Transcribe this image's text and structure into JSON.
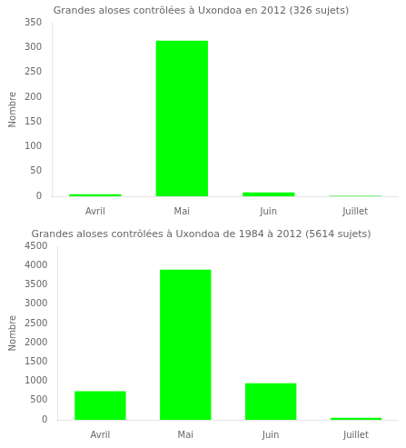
{
  "chart_data": [
    {
      "type": "bar",
      "title": "Grandes aloses contrôlées à Uxondoa en 2012 (326 sujets)",
      "categories": [
        "Avril",
        "Mai",
        "Juin",
        "Juillet"
      ],
      "values": [
        4,
        314,
        8,
        1
      ],
      "color": "#00FF00",
      "ylabel": "Nombre",
      "ylim": [
        0,
        350
      ],
      "yticks": [
        0,
        50,
        100,
        150,
        200,
        250,
        300,
        350
      ],
      "grid": false
    },
    {
      "type": "bar",
      "title": "Grandes aloses contrôlées à Uxondoa de 1984 à 2012 (5614 sujets)",
      "categories": [
        "Avril",
        "Mai",
        "Juin",
        "Juillet"
      ],
      "values": [
        740,
        3900,
        950,
        55
      ],
      "color": "#00FF00",
      "ylabel": "Nombre",
      "ylim": [
        0,
        4500
      ],
      "yticks": [
        0,
        500,
        1000,
        1500,
        2000,
        2500,
        3000,
        3500,
        4000,
        4500
      ],
      "grid": false
    }
  ]
}
